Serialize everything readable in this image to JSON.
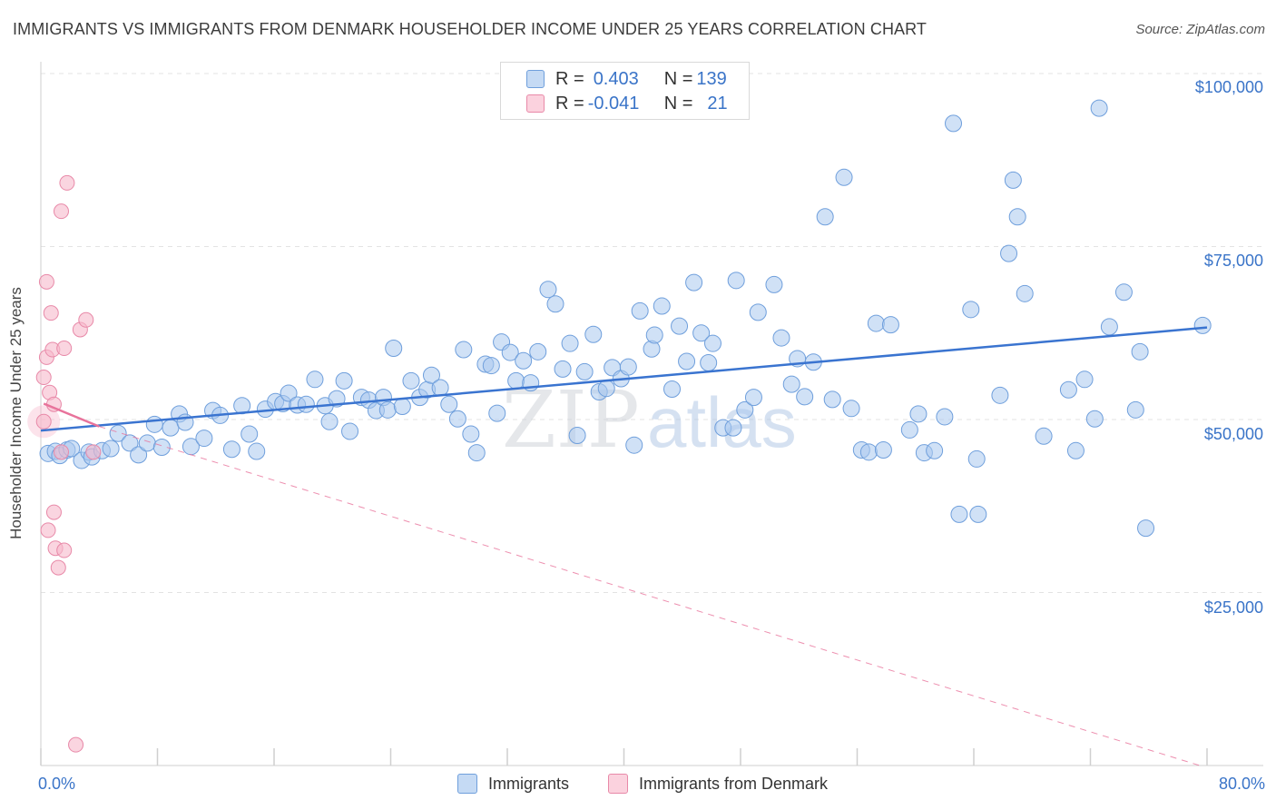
{
  "header": {
    "title": "IMMIGRANTS VS IMMIGRANTS FROM DENMARK HOUSEHOLDER INCOME UNDER 25 YEARS CORRELATION CHART",
    "source": "Source: ZipAtlas.com"
  },
  "watermark": {
    "zip": "ZIP",
    "atlas": "atlas"
  },
  "legend": {
    "r_label": "R = ",
    "n_label": "N = ",
    "rows": [
      {
        "r": "0.403",
        "n": "139",
        "color": "#aac8ef"
      },
      {
        "r": "-0.041",
        "n": "21",
        "color": "#f7b9cc"
      }
    ]
  },
  "bottom_legend": {
    "items": [
      {
        "label": "Immigrants",
        "color": "#aac8ef"
      },
      {
        "label": "Immigrants from Denmark",
        "color": "#f7b9cc"
      }
    ]
  },
  "axes": {
    "ylabel": "Householder Income Under 25 years",
    "x_min_label": "0.0%",
    "x_max_label": "80.0%",
    "y_ticks": [
      "$100,000",
      "$75,000",
      "$50,000",
      "$25,000"
    ]
  },
  "chart_data": {
    "type": "scatter",
    "title": "IMMIGRANTS VS IMMIGRANTS FROM DENMARK HOUSEHOLDER INCOME UNDER 25 YEARS CORRELATION CHART",
    "xlabel": "",
    "ylabel": "Householder Income Under 25 years",
    "xlim": [
      0,
      80
    ],
    "ylim": [
      0,
      105000
    ],
    "y_ticks": [
      25000,
      50000,
      75000,
      100000
    ],
    "grid": true,
    "legend_position": "top-center",
    "colors": {
      "immigrants": "#aac8ef",
      "immigrants_stroke": "#6f9fdc",
      "denmark": "#f7b9cc",
      "denmark_stroke": "#e889a8",
      "trend_blue": "#3a74d0",
      "trend_pink": "#e8739b"
    },
    "series": [
      {
        "name": "Immigrants",
        "r": 0.403,
        "n": 139,
        "trend": [
          [
            0,
            48400
          ],
          [
            80,
            63300
          ]
        ],
        "points": [
          [
            0.5,
            45100
          ],
          [
            1.0,
            45400
          ],
          [
            1.3,
            44800
          ],
          [
            1.8,
            45600
          ],
          [
            2.1,
            45800
          ],
          [
            2.8,
            44100
          ],
          [
            3.3,
            45300
          ],
          [
            3.5,
            44600
          ],
          [
            4.2,
            45500
          ],
          [
            4.8,
            45800
          ],
          [
            5.3,
            48000
          ],
          [
            6.1,
            46600
          ],
          [
            6.7,
            44900
          ],
          [
            7.3,
            46600
          ],
          [
            7.8,
            49300
          ],
          [
            8.3,
            46000
          ],
          [
            8.9,
            48800
          ],
          [
            9.5,
            50800
          ],
          [
            9.9,
            49600
          ],
          [
            10.3,
            46100
          ],
          [
            11.2,
            47300
          ],
          [
            11.8,
            51300
          ],
          [
            12.3,
            50600
          ],
          [
            13.1,
            45700
          ],
          [
            13.8,
            52000
          ],
          [
            14.3,
            47900
          ],
          [
            14.8,
            45400
          ],
          [
            15.4,
            51500
          ],
          [
            16.1,
            52600
          ],
          [
            16.6,
            52300
          ],
          [
            17.0,
            53800
          ],
          [
            17.6,
            52100
          ],
          [
            18.2,
            52200
          ],
          [
            18.8,
            55800
          ],
          [
            19.5,
            52000
          ],
          [
            19.8,
            49700
          ],
          [
            20.3,
            53000
          ],
          [
            20.8,
            55600
          ],
          [
            21.2,
            48300
          ],
          [
            22.0,
            53200
          ],
          [
            22.5,
            52800
          ],
          [
            23.0,
            51300
          ],
          [
            23.5,
            53200
          ],
          [
            23.8,
            51400
          ],
          [
            24.2,
            60300
          ],
          [
            24.8,
            51900
          ],
          [
            25.4,
            55600
          ],
          [
            26.0,
            53200
          ],
          [
            26.5,
            54300
          ],
          [
            26.8,
            56400
          ],
          [
            27.4,
            54600
          ],
          [
            28.0,
            52200
          ],
          [
            28.6,
            50100
          ],
          [
            29.0,
            60100
          ],
          [
            29.5,
            47900
          ],
          [
            29.9,
            45200
          ],
          [
            30.5,
            58000
          ],
          [
            30.9,
            57800
          ],
          [
            31.3,
            50900
          ],
          [
            31.6,
            61200
          ],
          [
            32.2,
            59700
          ],
          [
            32.6,
            55600
          ],
          [
            33.1,
            58500
          ],
          [
            33.6,
            55300
          ],
          [
            34.1,
            59800
          ],
          [
            34.8,
            68800
          ],
          [
            35.3,
            66700
          ],
          [
            35.8,
            57300
          ],
          [
            36.3,
            61000
          ],
          [
            36.8,
            47700
          ],
          [
            37.3,
            56900
          ],
          [
            37.9,
            62300
          ],
          [
            38.3,
            54000
          ],
          [
            38.8,
            54500
          ],
          [
            39.2,
            57500
          ],
          [
            39.8,
            55900
          ],
          [
            40.3,
            57600
          ],
          [
            40.7,
            46300
          ],
          [
            41.1,
            65700
          ],
          [
            41.9,
            60200
          ],
          [
            42.1,
            62200
          ],
          [
            42.6,
            66400
          ],
          [
            43.3,
            54400
          ],
          [
            43.8,
            63500
          ],
          [
            44.3,
            58400
          ],
          [
            44.8,
            69800
          ],
          [
            45.3,
            62500
          ],
          [
            45.8,
            58200
          ],
          [
            46.1,
            61000
          ],
          [
            46.8,
            48800
          ],
          [
            47.5,
            48800
          ],
          [
            47.7,
            70100
          ],
          [
            48.3,
            51400
          ],
          [
            48.9,
            53200
          ],
          [
            49.2,
            65500
          ],
          [
            50.3,
            69500
          ],
          [
            50.8,
            61800
          ],
          [
            51.5,
            55100
          ],
          [
            51.9,
            58800
          ],
          [
            52.4,
            53300
          ],
          [
            53.0,
            58300
          ],
          [
            53.8,
            79300
          ],
          [
            54.3,
            52900
          ],
          [
            55.1,
            85000
          ],
          [
            55.6,
            51600
          ],
          [
            56.3,
            45600
          ],
          [
            56.8,
            45300
          ],
          [
            57.3,
            63900
          ],
          [
            57.8,
            45600
          ],
          [
            58.3,
            63700
          ],
          [
            59.6,
            48500
          ],
          [
            60.2,
            50800
          ],
          [
            60.6,
            45200
          ],
          [
            61.3,
            45500
          ],
          [
            62.0,
            50400
          ],
          [
            62.6,
            92800
          ],
          [
            63.0,
            36300
          ],
          [
            63.8,
            65900
          ],
          [
            64.2,
            44300
          ],
          [
            64.3,
            36300
          ],
          [
            65.8,
            53500
          ],
          [
            66.4,
            74000
          ],
          [
            66.7,
            84600
          ],
          [
            67.0,
            79300
          ],
          [
            67.5,
            68200
          ],
          [
            68.8,
            47600
          ],
          [
            70.5,
            54300
          ],
          [
            71.0,
            45500
          ],
          [
            71.6,
            55800
          ],
          [
            72.3,
            50100
          ],
          [
            72.6,
            95000
          ],
          [
            73.3,
            63400
          ],
          [
            74.3,
            68400
          ],
          [
            75.1,
            51400
          ],
          [
            75.4,
            59800
          ],
          [
            75.8,
            34300
          ],
          [
            79.7,
            63600
          ]
        ]
      },
      {
        "name": "Immigrants from Denmark",
        "r": -0.041,
        "n": 21,
        "trend_solid": [
          [
            0.2,
            52300
          ],
          [
            4.0,
            49000
          ]
        ],
        "trend_dashed": [
          [
            4.0,
            49000
          ],
          [
            79.5,
            0
          ]
        ],
        "points": [
          [
            0.2,
            49700
          ],
          [
            0.2,
            56100
          ],
          [
            0.4,
            69900
          ],
          [
            0.4,
            59000
          ],
          [
            0.5,
            34000
          ],
          [
            0.6,
            53900
          ],
          [
            0.7,
            65400
          ],
          [
            0.8,
            60100
          ],
          [
            0.9,
            52200
          ],
          [
            0.9,
            36600
          ],
          [
            1.0,
            31400
          ],
          [
            1.2,
            28600
          ],
          [
            1.4,
            80100
          ],
          [
            1.4,
            45300
          ],
          [
            1.6,
            31100
          ],
          [
            1.6,
            60300
          ],
          [
            1.8,
            84200
          ],
          [
            2.7,
            63000
          ],
          [
            3.1,
            64400
          ],
          [
            3.6,
            45300
          ],
          [
            2.4,
            3000
          ]
        ]
      }
    ]
  }
}
